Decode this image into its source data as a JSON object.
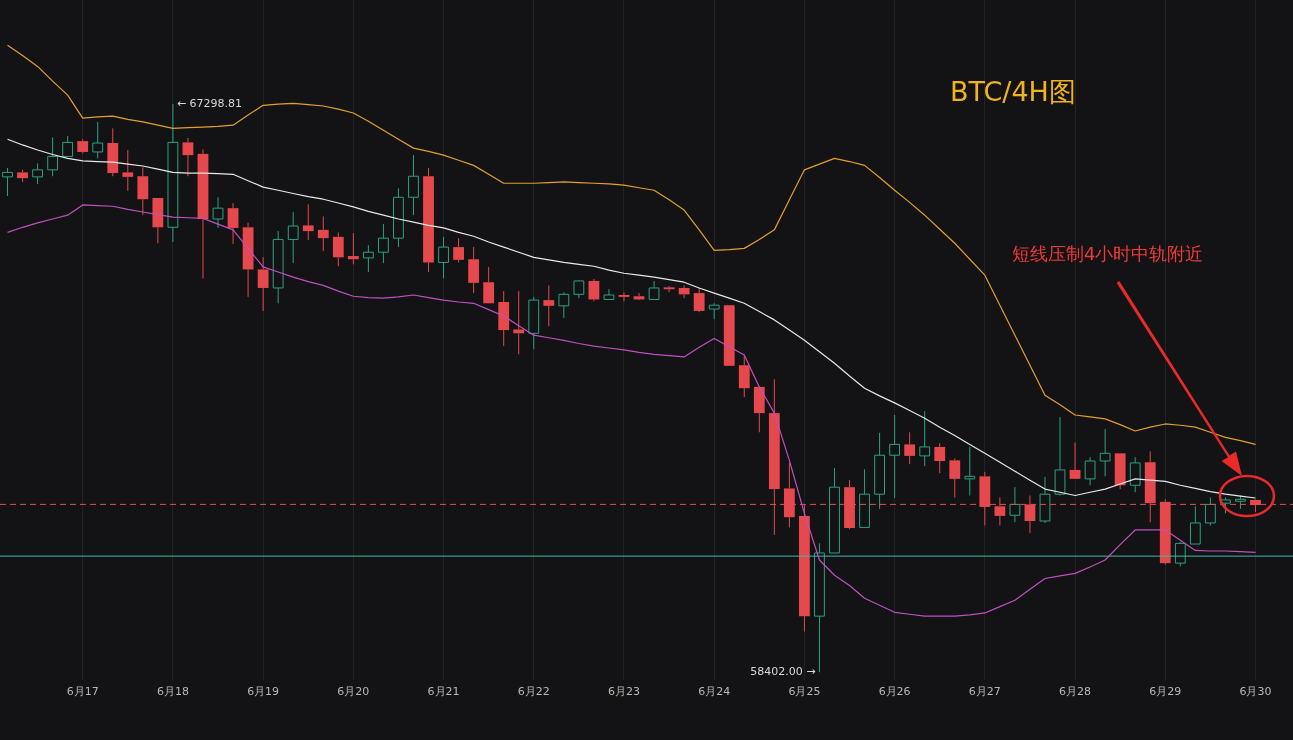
{
  "chart_data": {
    "type": "candlestick",
    "title": "BTC/4H图",
    "categories": [
      null,
      null,
      null,
      null,
      null,
      "6月17",
      null,
      null,
      null,
      null,
      null,
      "6月18",
      null,
      null,
      null,
      null,
      null,
      "6月19",
      null,
      null,
      null,
      null,
      null,
      "6月20",
      null,
      null,
      null,
      null,
      null,
      "6月21",
      null,
      null,
      null,
      null,
      null,
      "6月22",
      null,
      null,
      null,
      null,
      null,
      "6月23",
      null,
      null,
      null,
      null,
      null,
      "6月24",
      null,
      null,
      null,
      null,
      null,
      "6月25",
      null,
      null,
      null,
      null,
      null,
      "6月26",
      null,
      null,
      null,
      null,
      null,
      "6月27",
      null,
      null,
      null,
      null,
      null,
      "6月28",
      null,
      null,
      null,
      null,
      null,
      "6月29",
      null,
      null,
      null,
      null,
      null,
      "6月30"
    ],
    "ohlc": [
      [
        66160,
        66300,
        65860,
        66230
      ],
      [
        66230,
        66270,
        66080,
        66140
      ],
      [
        66160,
        66370,
        66050,
        66270
      ],
      [
        66270,
        66780,
        66170,
        66480
      ],
      [
        66480,
        66800,
        66480,
        66700
      ],
      [
        66720,
        66750,
        66530,
        66550
      ],
      [
        66550,
        67020,
        66450,
        66690
      ],
      [
        66690,
        66920,
        66170,
        66220
      ],
      [
        66230,
        66580,
        65940,
        66160
      ],
      [
        66170,
        66310,
        65560,
        65810
      ],
      [
        65830,
        65830,
        65120,
        65370
      ],
      [
        65370,
        67298.81,
        65140,
        66700
      ],
      [
        66700,
        66770,
        66170,
        66500
      ],
      [
        66520,
        66590,
        64570,
        65500
      ],
      [
        65500,
        65840,
        65360,
        65670
      ],
      [
        65670,
        65750,
        65110,
        65360
      ],
      [
        65370,
        65440,
        64280,
        64710
      ],
      [
        64710,
        64900,
        64060,
        64420
      ],
      [
        64420,
        65310,
        64180,
        65180
      ],
      [
        65180,
        65610,
        64810,
        65390
      ],
      [
        65400,
        65730,
        65170,
        65310
      ],
      [
        65330,
        65540,
        65000,
        65200
      ],
      [
        65220,
        65290,
        64760,
        64900
      ],
      [
        64920,
        65280,
        64790,
        64870
      ],
      [
        64890,
        65090,
        64670,
        64980
      ],
      [
        64980,
        65420,
        64810,
        65200
      ],
      [
        65200,
        65980,
        65060,
        65840
      ],
      [
        65840,
        66500,
        65560,
        66170
      ],
      [
        66170,
        66300,
        64670,
        64820
      ],
      [
        64820,
        65220,
        64570,
        65060
      ],
      [
        65060,
        65200,
        64820,
        64860
      ],
      [
        64870,
        65060,
        64340,
        64500
      ],
      [
        64510,
        64750,
        64180,
        64180
      ],
      [
        64200,
        64370,
        63510,
        63760
      ],
      [
        63770,
        64370,
        63380,
        63710
      ],
      [
        63710,
        64280,
        63460,
        64230
      ],
      [
        64230,
        64460,
        63820,
        64140
      ],
      [
        64140,
        64350,
        63950,
        64320
      ],
      [
        64320,
        64540,
        64260,
        64530
      ],
      [
        64530,
        64560,
        64210,
        64240
      ],
      [
        64240,
        64400,
        64240,
        64310
      ],
      [
        64310,
        64350,
        64210,
        64280
      ],
      [
        64290,
        64340,
        64230,
        64240
      ],
      [
        64240,
        64530,
        64240,
        64420
      ],
      [
        64430,
        64450,
        64350,
        64400
      ],
      [
        64420,
        64460,
        64260,
        64320
      ],
      [
        64340,
        64420,
        64040,
        64060
      ],
      [
        64090,
        64180,
        63930,
        64150
      ],
      [
        64150,
        64150,
        63200,
        63200
      ],
      [
        63210,
        63370,
        62710,
        62850
      ],
      [
        62870,
        62880,
        62160,
        62460
      ],
      [
        62460,
        62990,
        60550,
        61270
      ],
      [
        61280,
        61680,
        60670,
        60830
      ],
      [
        60850,
        61020,
        59040,
        59280
      ],
      [
        59280,
        60420,
        58402.0,
        60270
      ],
      [
        60270,
        61600,
        60270,
        61300
      ],
      [
        61300,
        61410,
        60640,
        60660
      ],
      [
        60670,
        61580,
        60670,
        61190
      ],
      [
        61190,
        62150,
        60960,
        61800
      ],
      [
        61800,
        62430,
        61130,
        61970
      ],
      [
        61970,
        62160,
        61660,
        61790
      ],
      [
        61790,
        62490,
        61630,
        61930
      ],
      [
        61930,
        61990,
        61520,
        61710
      ],
      [
        61720,
        61750,
        61140,
        61430
      ],
      [
        61430,
        61930,
        61170,
        61470
      ],
      [
        61470,
        61540,
        60700,
        60990
      ],
      [
        61000,
        61140,
        60700,
        60850
      ],
      [
        60860,
        61300,
        60750,
        61030
      ],
      [
        61030,
        61170,
        60580,
        60770
      ],
      [
        60770,
        61460,
        60740,
        61190
      ],
      [
        61190,
        62400,
        61170,
        61570
      ],
      [
        61570,
        62000,
        61430,
        61430
      ],
      [
        61430,
        61770,
        61330,
        61710
      ],
      [
        61710,
        62210,
        61470,
        61830
      ],
      [
        61830,
        61830,
        61270,
        61330
      ],
      [
        61330,
        61770,
        61220,
        61680
      ],
      [
        61690,
        61860,
        60750,
        61050
      ],
      [
        61070,
        61110,
        60090,
        60110
      ],
      [
        60110,
        60440,
        60060,
        60420
      ],
      [
        60410,
        61000,
        60410,
        60740
      ],
      [
        60740,
        61140,
        60700,
        61030
      ],
      [
        61050,
        61140,
        60890,
        61100
      ],
      [
        61080,
        61170,
        60960,
        61110
      ],
      [
        61100,
        61110,
        60910,
        61020
      ]
    ],
    "series": [
      {
        "type": "line",
        "color": "#e0a030",
        "values": [
          68220,
          68060,
          67890,
          67660,
          67440,
          67080,
          67100,
          67110,
          67060,
          67020,
          66970,
          66920,
          66930,
          66940,
          66950,
          66970,
          67130,
          67280,
          67300,
          67310,
          67290,
          67270,
          67220,
          67160,
          67030,
          66890,
          66750,
          66610,
          66560,
          66500,
          66420,
          66340,
          66200,
          66060,
          66060,
          66060,
          66070,
          66080,
          66070,
          66060,
          66050,
          66030,
          65990,
          65950,
          65800,
          65640,
          65330,
          65010,
          65020,
          65040,
          65180,
          65330,
          65800,
          66270,
          66360,
          66450,
          66400,
          66340,
          66150,
          65950,
          65760,
          65560,
          65340,
          65120,
          64870,
          64620,
          64150,
          63680,
          63210,
          62740,
          62590,
          62430,
          62400,
          62370,
          62280,
          62180,
          62240,
          62290,
          62270,
          62240,
          62160,
          62080,
          62030,
          61970
        ]
      },
      {
        "type": "line",
        "color": "#e8e8e8",
        "values": [
          66750,
          66660,
          66580,
          66510,
          66450,
          66410,
          66400,
          66390,
          66360,
          66330,
          66280,
          66230,
          66220,
          66220,
          66210,
          66200,
          66100,
          66000,
          65950,
          65900,
          65850,
          65810,
          65750,
          65690,
          65620,
          65560,
          65500,
          65450,
          65400,
          65360,
          65290,
          65230,
          65140,
          65060,
          64980,
          64900,
          64860,
          64820,
          64790,
          64760,
          64700,
          64650,
          64620,
          64590,
          64550,
          64510,
          64420,
          64340,
          64260,
          64180,
          64050,
          63920,
          63760,
          63600,
          63420,
          63240,
          63040,
          62850,
          62730,
          62620,
          62500,
          62380,
          62240,
          62110,
          61970,
          61830,
          61690,
          61550,
          61410,
          61270,
          61220,
          61170,
          61220,
          61270,
          61350,
          61430,
          61410,
          61390,
          61330,
          61280,
          61230,
          61190,
          61160,
          61130
        ]
      },
      {
        "type": "line",
        "color": "#c050c0",
        "values": [
          65290,
          65370,
          65440,
          65500,
          65560,
          65720,
          65710,
          65700,
          65650,
          65610,
          65570,
          65530,
          65520,
          65510,
          65420,
          65330,
          65040,
          64750,
          64670,
          64590,
          64520,
          64460,
          64370,
          64290,
          64270,
          64260,
          64280,
          64310,
          64270,
          64230,
          64200,
          64180,
          64080,
          63980,
          63830,
          63680,
          63640,
          63600,
          63550,
          63510,
          63480,
          63450,
          63410,
          63380,
          63360,
          63340,
          63490,
          63630,
          63500,
          63370,
          62870,
          62460,
          61720,
          60890,
          60160,
          59920,
          59760,
          59560,
          59450,
          59340,
          59310,
          59280,
          59280,
          59280,
          59300,
          59330,
          59430,
          59530,
          59700,
          59870,
          59910,
          59950,
          60050,
          60160,
          60400,
          60630,
          60630,
          60630,
          60470,
          60310,
          60300,
          60300,
          60290,
          60280
        ]
      }
    ],
    "ylim": [
      58280,
      68930
    ],
    "ref_lines": [
      {
        "axis": "y",
        "value": 61030,
        "color": "#e05050",
        "line_style": "dashed"
      },
      {
        "axis": "y",
        "value": 60220,
        "color": "#3fb8a8",
        "line_style": "solid"
      }
    ],
    "annotations": [
      "短线压制4小时中轨附近",
      {
        "text": "← 67298.81",
        "x": "6月18",
        "y": 67298.81
      },
      "58402.00 →"
    ],
    "tick_labels": "x",
    "grid": "x",
    "legend": false,
    "marker": "none"
  }
}
